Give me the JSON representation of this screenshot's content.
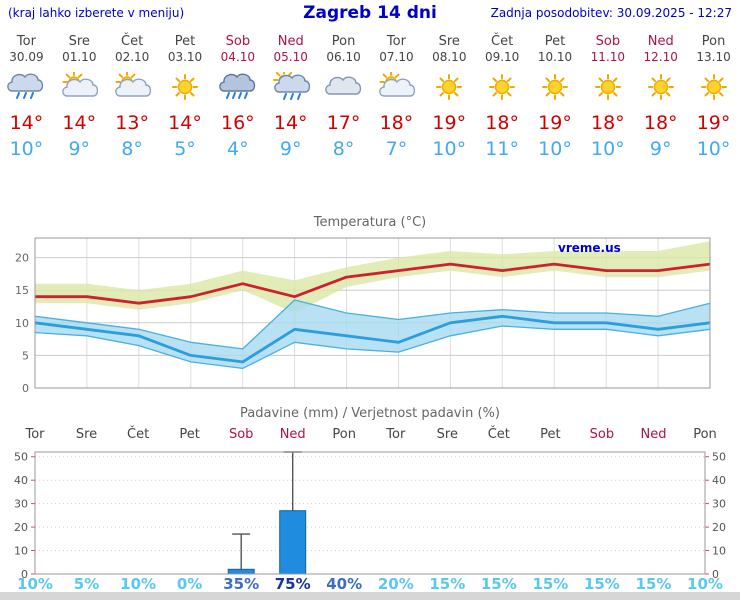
{
  "header": {
    "note": "(kraj lahko izberete v meniju)",
    "title": "Zagreb 14 dni",
    "updated": "Zadnja posodobitev: 30.09.2025 - 12:27"
  },
  "watermark": "vreme.us",
  "days": [
    {
      "name": "Tor",
      "date": "30.09",
      "weekend": false,
      "icon": "rain",
      "tmax": 14,
      "tmin": 10
    },
    {
      "name": "Sre",
      "date": "01.10",
      "weekend": false,
      "icon": "partly",
      "tmax": 14,
      "tmin": 9
    },
    {
      "name": "Čet",
      "date": "02.10",
      "weekend": false,
      "icon": "partly",
      "tmax": 13,
      "tmin": 8
    },
    {
      "name": "Pet",
      "date": "03.10",
      "weekend": false,
      "icon": "sunny",
      "tmax": 14,
      "tmin": 5
    },
    {
      "name": "Sob",
      "date": "04.10",
      "weekend": true,
      "icon": "heavy-rain",
      "tmax": 16,
      "tmin": 4
    },
    {
      "name": "Ned",
      "date": "05.10",
      "weekend": true,
      "icon": "rain-sun",
      "tmax": 14,
      "tmin": 9
    },
    {
      "name": "Pon",
      "date": "06.10",
      "weekend": false,
      "icon": "cloudy",
      "tmax": 17,
      "tmin": 8
    },
    {
      "name": "Tor",
      "date": "07.10",
      "weekend": false,
      "icon": "partly",
      "tmax": 18,
      "tmin": 7
    },
    {
      "name": "Sre",
      "date": "08.10",
      "weekend": false,
      "icon": "sunny",
      "tmax": 19,
      "tmin": 10
    },
    {
      "name": "Čet",
      "date": "09.10",
      "weekend": false,
      "icon": "sunny",
      "tmax": 18,
      "tmin": 11
    },
    {
      "name": "Pet",
      "date": "10.10",
      "weekend": false,
      "icon": "sunny",
      "tmax": 19,
      "tmin": 10
    },
    {
      "name": "Sob",
      "date": "11.10",
      "weekend": true,
      "icon": "sunny",
      "tmax": 18,
      "tmin": 10
    },
    {
      "name": "Ned",
      "date": "12.10",
      "weekend": true,
      "icon": "sunny",
      "tmax": 18,
      "tmin": 9
    },
    {
      "name": "Pon",
      "date": "13.10",
      "weekend": false,
      "icon": "sunny",
      "tmax": 19,
      "tmin": 10
    }
  ],
  "chart_data": [
    {
      "type": "line",
      "title": "Temperatura (°C)",
      "x": [
        "Tor",
        "Sre",
        "Čet",
        "Pet",
        "Sob",
        "Ned",
        "Pon",
        "Tor",
        "Sre",
        "Čet",
        "Pet",
        "Sob",
        "Ned",
        "Pon"
      ],
      "ylim": [
        0,
        23
      ],
      "yticks": [
        0,
        5,
        10,
        15,
        20
      ],
      "grid": true,
      "series": [
        {
          "name": "max",
          "values": [
            14,
            14,
            13,
            14,
            16,
            14,
            17,
            18,
            19,
            18,
            19,
            18,
            18,
            19
          ]
        },
        {
          "name": "max_upper",
          "values": [
            16,
            16,
            15,
            16,
            18,
            16.5,
            18.5,
            20,
            21,
            20.5,
            21,
            21,
            21,
            22.5
          ]
        },
        {
          "name": "max_lower",
          "values": [
            13,
            13,
            12,
            13,
            15,
            11.5,
            15.5,
            17,
            18,
            17,
            18,
            17,
            17,
            18
          ]
        },
        {
          "name": "min",
          "values": [
            10,
            9,
            8,
            5,
            4,
            9,
            8,
            7,
            10,
            11,
            10,
            10,
            9,
            10
          ]
        },
        {
          "name": "min_upper",
          "values": [
            11,
            10,
            9,
            7,
            6,
            13.5,
            11.5,
            10.5,
            11.5,
            12,
            11.5,
            11.5,
            11,
            13
          ]
        },
        {
          "name": "min_lower",
          "values": [
            8.5,
            8,
            6.5,
            4,
            3,
            7,
            6,
            5.5,
            8,
            9.5,
            9,
            9,
            8,
            9
          ]
        }
      ]
    },
    {
      "type": "bar",
      "title": "Padavine (mm) / Verjetnost padavin (%)",
      "categories": [
        "Tor",
        "Sre",
        "Čet",
        "Pet",
        "Sob",
        "Ned",
        "Pon",
        "Tor",
        "Sre",
        "Čet",
        "Pet",
        "Sob",
        "Ned",
        "Pon"
      ],
      "weekend": [
        false,
        false,
        false,
        false,
        true,
        true,
        false,
        false,
        false,
        false,
        false,
        true,
        true,
        false
      ],
      "precip_mm": [
        0,
        0,
        0,
        0,
        2,
        27,
        0,
        0,
        0,
        0,
        0,
        0,
        0,
        0
      ],
      "whisker_max_mm": [
        0,
        0,
        0,
        0,
        17,
        52,
        0,
        0,
        0,
        0,
        0,
        0,
        0,
        0
      ],
      "probability_pct": [
        10,
        5,
        10,
        0,
        35,
        75,
        40,
        20,
        15,
        15,
        15,
        15,
        15,
        10
      ],
      "ylim": [
        0,
        52
      ],
      "yticks": [
        0,
        10,
        20,
        30,
        40,
        50
      ]
    }
  ],
  "colors": {
    "header_text": "#0000cc",
    "weekday": "#444444",
    "weekend": "#b0104c",
    "temp_max": "#d40000",
    "temp_min": "#42aaf0",
    "chart_title": "#666666",
    "temp_line_max": "#cf2030",
    "temp_line_min": "#2b9fdc",
    "band_max": "#dbe7a4",
    "band_min": "#a6d9f0",
    "band_min_edge": "#49b0e4",
    "bar": "#1f8ce0",
    "bar_border": "#11649f",
    "grid": "#cccccc",
    "watermark": "#0000cc",
    "prob_low": "#5bc8f0",
    "prob_mid": "#3a6fc3",
    "prob_high": "#15339e"
  }
}
